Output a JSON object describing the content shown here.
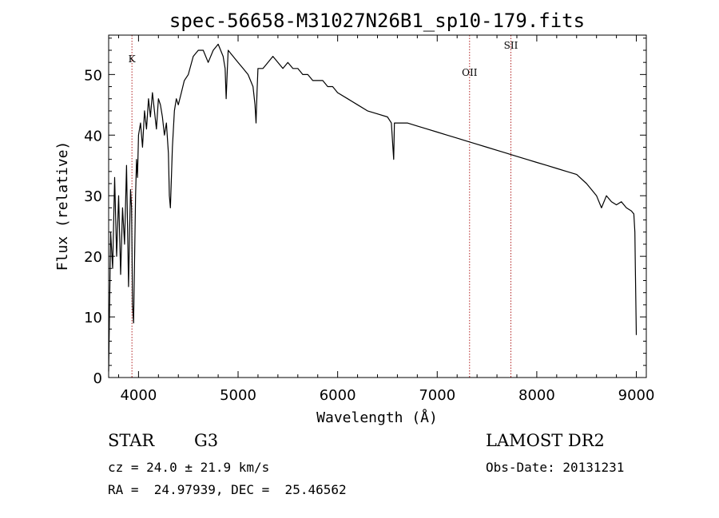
{
  "chart_data": {
    "type": "line",
    "title": "spec-56658-M31027N26B1_sp10-179.fits",
    "xlabel": "Wavelength (Å)",
    "ylabel": "Flux (relative)",
    "xlim": [
      3700,
      9100
    ],
    "ylim": [
      0,
      56.5
    ],
    "xticks": [
      4000,
      5000,
      6000,
      7000,
      8000,
      9000
    ],
    "yticks": [
      0,
      10,
      20,
      30,
      40,
      50
    ],
    "grid": false,
    "line_color": "#000000",
    "marker_color": "#b22222",
    "series": [
      {
        "x": [
          3700,
          3720,
          3740,
          3760,
          3780,
          3800,
          3820,
          3840,
          3860,
          3880,
          3900,
          3910,
          3920,
          3930,
          3940,
          3950,
          3960,
          3970,
          3980,
          3990,
          4000,
          4020,
          4040,
          4060,
          4080,
          4100,
          4120,
          4140,
          4160,
          4180,
          4200,
          4220,
          4240,
          4260,
          4280,
          4300,
          4310,
          4320,
          4340,
          4360,
          4380,
          4400,
          4430,
          4460,
          4500,
          4550,
          4600,
          4650,
          4700,
          4750,
          4800,
          4850,
          4870,
          4880,
          4890,
          4900,
          4950,
          5000,
          5050,
          5100,
          5150,
          5170,
          5180,
          5190,
          5200,
          5250,
          5300,
          5350,
          5400,
          5450,
          5500,
          5550,
          5600,
          5650,
          5700,
          5750,
          5800,
          5850,
          5900,
          5950,
          6000,
          6100,
          6200,
          6300,
          6400,
          6500,
          6540,
          6555,
          6563,
          6570,
          6600,
          6700,
          6800,
          6900,
          7000,
          7100,
          7200,
          7300,
          7400,
          7500,
          7600,
          7700,
          7800,
          7900,
          8000,
          8100,
          8200,
          8300,
          8400,
          8500,
          8550,
          8600,
          8650,
          8700,
          8750,
          8800,
          8850,
          8900,
          8950,
          8975,
          8985,
          8990,
          9000
        ],
        "values": [
          1,
          24,
          18,
          33,
          20,
          30,
          17,
          28,
          22,
          35,
          15,
          24,
          31,
          28,
          12,
          9,
          19,
          30,
          36,
          33,
          40,
          42,
          38,
          44,
          41,
          46,
          43,
          47,
          44,
          41,
          46,
          45,
          43,
          40,
          42,
          37,
          30,
          28,
          38,
          44,
          46,
          45,
          47,
          49,
          50,
          53,
          54,
          54,
          52,
          54,
          55,
          53,
          51,
          46,
          50,
          54,
          53,
          52,
          51,
          50,
          48,
          45,
          42,
          47,
          51,
          51,
          52,
          53,
          52,
          51,
          52,
          51,
          51,
          50,
          50,
          49,
          49,
          49,
          48,
          48,
          47,
          46,
          45,
          44,
          43.5,
          43,
          42,
          38,
          36,
          42,
          42,
          42,
          41.5,
          41,
          40.5,
          40,
          39.5,
          39,
          38.5,
          38,
          37.5,
          37,
          36.5,
          36,
          35.5,
          35,
          34.5,
          34,
          33.5,
          32,
          31,
          30,
          28,
          30,
          29,
          28.5,
          29,
          28,
          27.5,
          27,
          24,
          18,
          7
        ]
      }
    ],
    "markers": [
      {
        "label": "K",
        "x": 3934
      },
      {
        "label": "OII",
        "x": 7325
      },
      {
        "label": "SII",
        "x": 7740
      }
    ]
  },
  "info": {
    "class_label": "STAR",
    "subclass_label": "G3",
    "survey_label": "LAMOST DR2",
    "cz_line": "cz = 24.0 ± 21.9 km/s",
    "obs_date_line": "Obs-Date: 20131231",
    "coords_line": "RA =  24.97939, DEC =  25.46562"
  }
}
